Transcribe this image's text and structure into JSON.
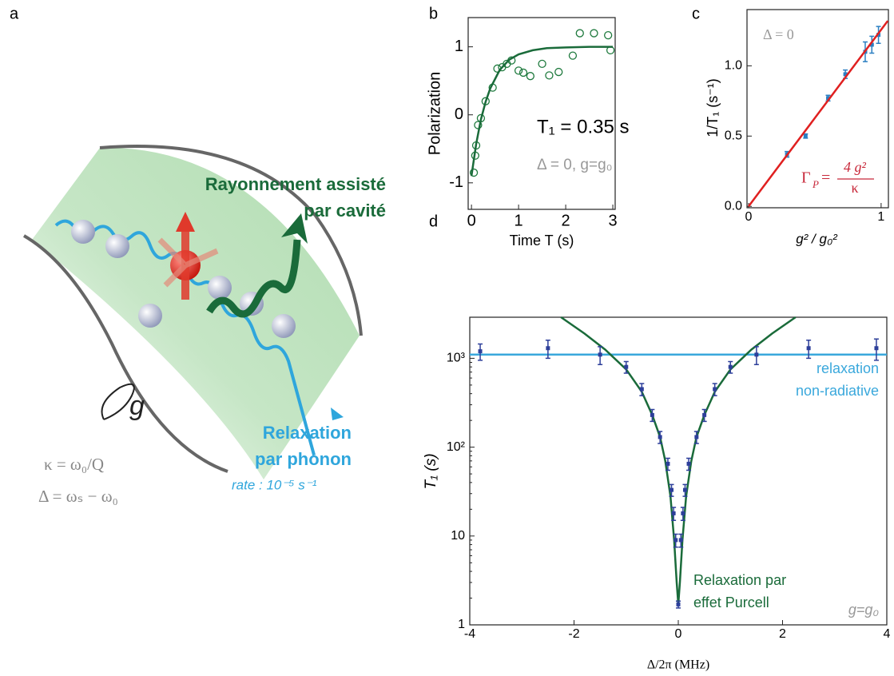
{
  "diagram": {
    "label": "a",
    "emission": [
      "Rayonnement assisté",
      "par cavité"
    ],
    "phonon": [
      "Relaxation",
      "par phonon"
    ],
    "rate": "rate : 10⁻⁵ s⁻¹",
    "coupling": "g",
    "kappa": "κ = ω₀/Q",
    "detuning": "Δ = ωₛ − ω₀"
  },
  "chart_data": [
    {
      "type": "scatter",
      "label": "b",
      "xlabel": "Time T (s)",
      "ylabel": "Polarization",
      "annotations": [
        "T₁ = 0.35 s",
        "Δ = 0, g=g₀"
      ],
      "xlim": [
        -0.07,
        3.05
      ],
      "ylim": [
        -1.39,
        1.43
      ],
      "xticks": [
        0,
        1,
        2,
        3
      ],
      "yticks": [
        -1,
        0,
        1
      ],
      "series": [
        {
          "style": "markers",
          "marker": "circle",
          "color": "#1f7a3e",
          "x": [
            0.05,
            0.08,
            0.1,
            0.14,
            0.2,
            0.3,
            0.45,
            0.55,
            0.65,
            0.75,
            0.85,
            1.0,
            1.1,
            1.25,
            1.5,
            1.65,
            1.85,
            2.15,
            2.3,
            2.6,
            2.9,
            2.95
          ],
          "values": [
            -0.85,
            -0.6,
            -0.45,
            -0.15,
            -0.05,
            0.2,
            0.4,
            0.68,
            0.7,
            0.75,
            0.8,
            0.65,
            0.62,
            0.57,
            0.75,
            0.58,
            0.63,
            0.87,
            1.2,
            1.2,
            1.17,
            0.95
          ]
        },
        {
          "style": "line",
          "color": "#1a6b3a",
          "x": [
            0,
            0.1,
            0.2,
            0.3,
            0.4,
            0.6,
            0.8,
            1.0,
            1.3,
            1.6,
            2,
            2.5,
            3
          ],
          "values": [
            -0.9,
            -0.43,
            -0.07,
            0.19,
            0.39,
            0.66,
            0.81,
            0.89,
            0.95,
            0.98,
            0.99,
            1.0,
            1.0
          ]
        }
      ]
    },
    {
      "type": "scatter",
      "label": "c",
      "xlabel": "g² / g₀²",
      "ylabel": "1/T₁ (s⁻¹)",
      "annotations": [
        "Δ = 0"
      ],
      "formula": {
        "lhs": "Γ",
        "sub": "P",
        "eq": "=",
        "num": "4 g²",
        "den": "κ"
      },
      "xlim": [
        -0.012,
        1.055
      ],
      "ylim": [
        -0.01,
        1.4
      ],
      "xticks": [
        0,
        1
      ],
      "yticks": [
        {
          "value": 0,
          "label": "0.0"
        },
        {
          "value": 0.5,
          "label": "0.5"
        },
        {
          "value": 1,
          "label": "1.0"
        }
      ],
      "series": [
        {
          "style": "markers",
          "marker": "square",
          "color": "#2b7fc2",
          "x": [
            0.29,
            0.43,
            0.6,
            0.73,
            0.88,
            0.93,
            0.98
          ],
          "values": [
            0.37,
            0.5,
            0.77,
            0.94,
            1.1,
            1.15,
            1.22
          ],
          "errors": [
            0.02,
            0.015,
            0.02,
            0.03,
            0.07,
            0.06,
            0.06
          ]
        },
        {
          "style": "line",
          "color": "#e02020",
          "x": [
            0,
            1.05
          ],
          "values": [
            0,
            1.32
          ]
        }
      ]
    },
    {
      "type": "scatter",
      "label": "d",
      "xlabel": "Δ/2π  (MHz)",
      "ylabel": "T₁ (s)",
      "annotations": [
        [
          "relaxation",
          "non-radiative"
        ],
        [
          "Relaxation par",
          "effet Purcell"
        ],
        "g=g₀"
      ],
      "xlim": [
        -4,
        4
      ],
      "ylim": [
        1,
        2900
      ],
      "ylog": true,
      "xticks": [
        -4,
        -2,
        0,
        2,
        4
      ],
      "yticks": [
        1,
        10,
        {
          "value": 100,
          "label": "10²"
        },
        {
          "value": 1000,
          "label": "10³"
        }
      ],
      "series": [
        {
          "style": "line",
          "color": "#3aa8dc",
          "x": [
            -4,
            4
          ],
          "values": [
            1100,
            1100
          ]
        },
        {
          "style": "line",
          "color": "#1a6b3a",
          "x": [
            -2.25,
            -1.8,
            -1.4,
            -1.0,
            -0.7,
            -0.5,
            -0.35,
            -0.25,
            -0.15,
            -0.08,
            -0.03,
            0,
            0.03,
            0.08,
            0.15,
            0.25,
            0.35,
            0.5,
            0.7,
            1.0,
            1.4,
            1.8,
            2.25
          ],
          "values": [
            2900,
            1900,
            1250,
            750,
            420,
            230,
            130,
            70,
            28,
            9,
            3,
            1.7,
            3,
            9,
            28,
            70,
            130,
            230,
            420,
            750,
            1250,
            1900,
            2900
          ]
        },
        {
          "style": "markers",
          "marker": "square",
          "color": "#2d3f9a",
          "x": [
            -3.8,
            -2.5,
            -1.5,
            -1.0,
            -0.7,
            -0.5,
            -0.35,
            -0.2,
            -0.13,
            -0.09,
            -0.05,
            0,
            0.05,
            0.09,
            0.13,
            0.2,
            0.35,
            0.5,
            0.7,
            1.0,
            1.5,
            2.5,
            3.8
          ],
          "values": [
            1200,
            1300,
            1100,
            800,
            450,
            230,
            130,
            65,
            33,
            18,
            9,
            1.7,
            9,
            18,
            33,
            65,
            130,
            230,
            450,
            800,
            1100,
            1300,
            1300
          ],
          "errors": [
            250,
            300,
            250,
            120,
            70,
            35,
            20,
            10,
            5,
            3,
            1.5,
            0.15,
            1.5,
            3,
            5,
            10,
            20,
            35,
            70,
            120,
            250,
            300,
            350
          ]
        }
      ]
    }
  ]
}
